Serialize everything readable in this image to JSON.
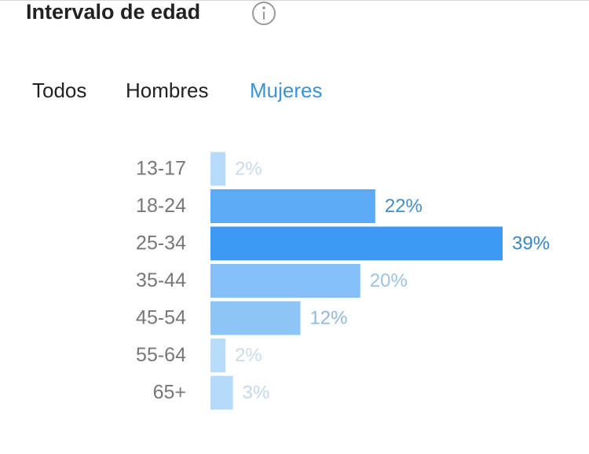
{
  "title": "Intervalo de edad",
  "tabs": [
    "Todos",
    "Hombres",
    "Mujeres"
  ],
  "active_tab": 2,
  "chart_data": {
    "type": "hbar",
    "categories": [
      "13-17",
      "18-24",
      "25-34",
      "35-44",
      "45-54",
      "55-64",
      "65+"
    ],
    "values": [
      2,
      22,
      39,
      20,
      12,
      2,
      3
    ],
    "value_labels": [
      "2%",
      "22%",
      "39%",
      "20%",
      "12%",
      "2%",
      "3%"
    ],
    "colors": [
      "#b7dcfb",
      "#5aaaf5",
      "#3d98f3",
      "#84bff7",
      "#8ec5f8",
      "#b9dcfa",
      "#b5daf9"
    ],
    "label_colors": [
      "#c8dbea",
      "#3f8fcd",
      "#3a87c6",
      "#9cc3e2",
      "#8fb9de",
      "#c8dbea",
      "#c3d8ea"
    ]
  }
}
